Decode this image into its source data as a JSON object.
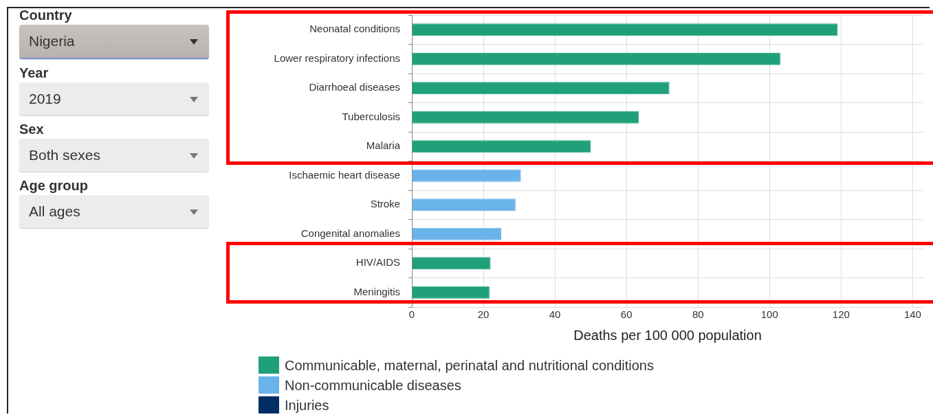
{
  "chart_data": {
    "type": "bar",
    "orientation": "horizontal",
    "stacked": true,
    "xlabel": "Deaths per 100 000 population",
    "categories": [
      "Neonatal conditions",
      "Lower respiratory infections",
      "Diarrhoeal diseases",
      "Tuberculosis",
      "Malaria",
      "Ischaemic heart disease",
      "Stroke",
      "Congenital anomalies",
      "HIV/AIDS",
      "Meningitis"
    ],
    "series": [
      {
        "name": "Communicable, maternal, perinatal and nutritional conditions",
        "color": "#1fa07a",
        "values": [
          119,
          103,
          72,
          63.5,
          50,
          null,
          null,
          null,
          22,
          21.7
        ]
      },
      {
        "name": "Non-communicable diseases",
        "color": "#6ab3ea",
        "values": [
          null,
          null,
          null,
          null,
          null,
          30.5,
          29,
          25,
          null,
          null
        ]
      },
      {
        "name": "Injuries",
        "color": "#002d62",
        "values": [
          null,
          null,
          null,
          null,
          null,
          null,
          null,
          null,
          null,
          null
        ]
      }
    ],
    "xlim": [
      0,
      143
    ],
    "xticks": [
      0,
      20,
      40,
      60,
      80,
      100,
      120,
      140
    ],
    "grid": true,
    "legend": "bottom left",
    "annotations": [
      "Country",
      "Nigeria",
      "Year",
      "2019",
      "Sex",
      "Both sexes",
      "Age group",
      "All ages"
    ]
  }
}
